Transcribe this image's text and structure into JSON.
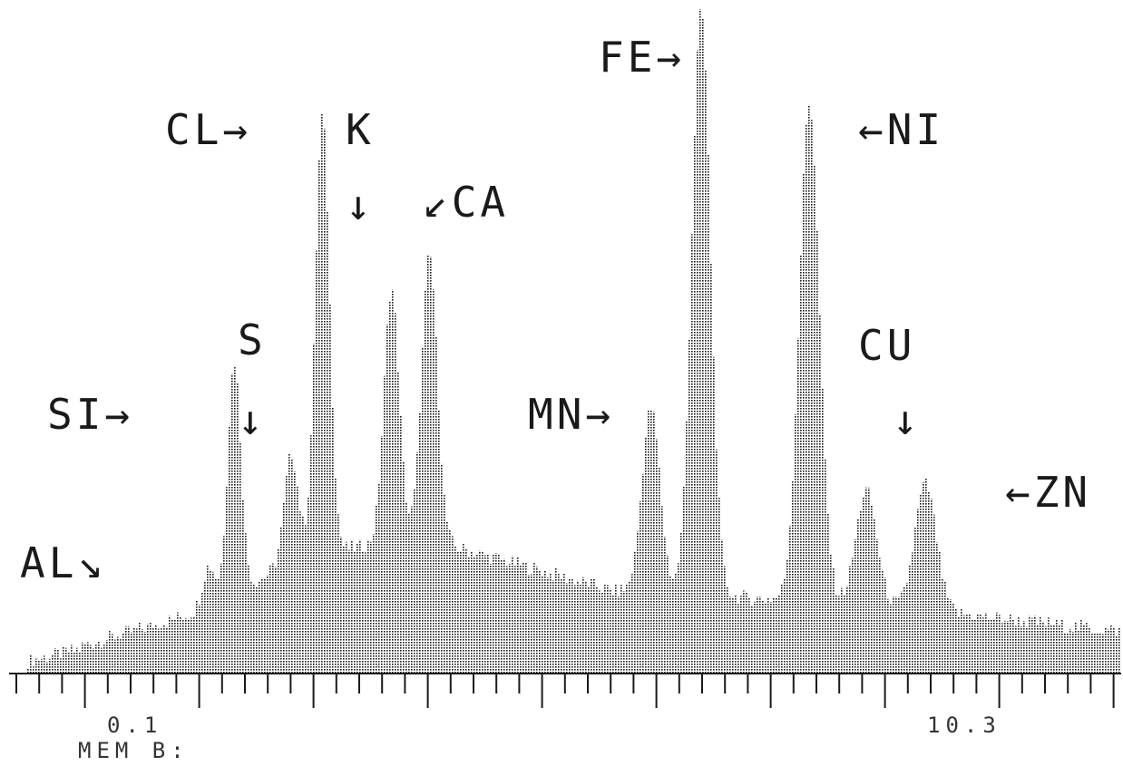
{
  "chart_data": {
    "type": "bar",
    "style": "dotted raster EDS spectrum",
    "x_unit": "keV",
    "x_range": [
      -0.5,
      10.6
    ],
    "y_range": [
      0,
      1000
    ],
    "x_tick_labels": [
      {
        "x": 0.1,
        "text": "0.1"
      },
      {
        "x": 10.3,
        "text": "10.3"
      }
    ],
    "memory_label": "MEM B:",
    "peaks": [
      {
        "element": "AL",
        "label": "AL↘",
        "energy": 1.49,
        "height": 165
      },
      {
        "element": "SI",
        "label": "SI→",
        "energy": 1.74,
        "height": 470
      },
      {
        "element": "S",
        "label": "S",
        "arrow": "↓",
        "energy": 2.31,
        "height": 330
      },
      {
        "element": "CL",
        "label": "CL→",
        "energy": 2.62,
        "height": 840
      },
      {
        "element": "K",
        "label": "K",
        "arrow": "↓",
        "energy": 3.31,
        "height": 580
      },
      {
        "element": "CA",
        "label": "↙CA",
        "energy": 3.69,
        "height": 630
      },
      {
        "element": "MN",
        "label": "MN→",
        "energy": 5.9,
        "height": 400
      },
      {
        "element": "FE",
        "label": "FE→",
        "energy": 6.4,
        "height": 1000
      },
      {
        "element": "NI",
        "label": "←NI",
        "energy": 7.48,
        "height": 860
      },
      {
        "element": "CU",
        "label": "CU",
        "arrow": "↓",
        "energy": 8.05,
        "height": 275
      },
      {
        "element": "ZN",
        "label": "←ZN",
        "energy": 8.64,
        "height": 285
      }
    ]
  },
  "colors": {
    "ink": "#1a1a1a",
    "background": "#ffffff"
  }
}
